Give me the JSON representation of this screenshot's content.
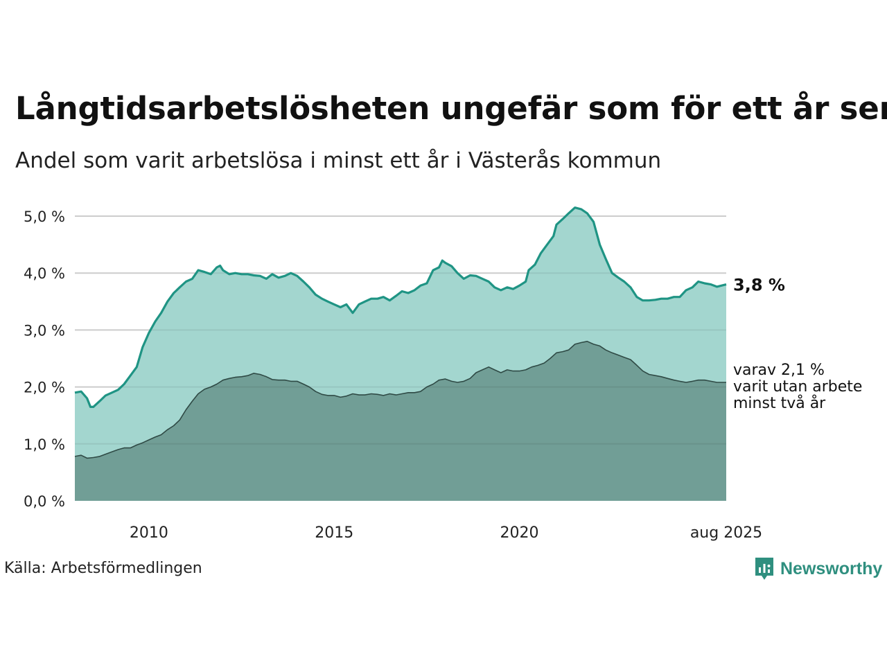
{
  "title": "Långtidsarbetslösheten ungefär som för ett år sen",
  "subtitle": "Andel som varit arbetslösa i minst ett år i Västerås kommun",
  "source": "Källa: Arbetsförmedlingen",
  "brand": "Newsworthy",
  "colors": {
    "area_one_year": "#a3d6cf",
    "line_one_year": "#1f9484",
    "area_two_year": "#6f9c94",
    "line_two_year": "#2f4a45",
    "brand": "#2f8f7f"
  },
  "chart_data": {
    "type": "area",
    "y_tick_labels": [
      "0,0 %",
      "1,0 %",
      "2,0 %",
      "3,0 %",
      "4,0 %",
      "5,0 %"
    ],
    "y_ticks": [
      0,
      1,
      2,
      3,
      4,
      5
    ],
    "ylim": [
      0,
      5.2
    ],
    "x_tick_labels": [
      "2010",
      "2015",
      "2020",
      "aug 2025"
    ],
    "x_ticks": [
      2010.0,
      2015.0,
      2020.0,
      2025.583
    ],
    "xlim": [
      2008.0,
      2025.583
    ],
    "grid": true,
    "series": [
      {
        "key": "one_year",
        "end_label": "3,8 %",
        "points": [
          [
            2008.0,
            1.9
          ],
          [
            2008.17,
            1.92
          ],
          [
            2008.33,
            1.8
          ],
          [
            2008.42,
            1.65
          ],
          [
            2008.5,
            1.65
          ],
          [
            2008.67,
            1.75
          ],
          [
            2008.83,
            1.85
          ],
          [
            2009.0,
            1.9
          ],
          [
            2009.17,
            1.95
          ],
          [
            2009.33,
            2.05
          ],
          [
            2009.5,
            2.2
          ],
          [
            2009.67,
            2.35
          ],
          [
            2009.83,
            2.7
          ],
          [
            2010.0,
            2.95
          ],
          [
            2010.17,
            3.15
          ],
          [
            2010.33,
            3.3
          ],
          [
            2010.5,
            3.5
          ],
          [
            2010.67,
            3.65
          ],
          [
            2010.83,
            3.75
          ],
          [
            2011.0,
            3.85
          ],
          [
            2011.17,
            3.9
          ],
          [
            2011.33,
            4.05
          ],
          [
            2011.5,
            4.02
          ],
          [
            2011.67,
            3.98
          ],
          [
            2011.83,
            4.1
          ],
          [
            2011.92,
            4.13
          ],
          [
            2012.0,
            4.05
          ],
          [
            2012.17,
            3.98
          ],
          [
            2012.33,
            4.0
          ],
          [
            2012.5,
            3.98
          ],
          [
            2012.67,
            3.98
          ],
          [
            2012.83,
            3.96
          ],
          [
            2013.0,
            3.95
          ],
          [
            2013.17,
            3.9
          ],
          [
            2013.33,
            3.98
          ],
          [
            2013.5,
            3.92
          ],
          [
            2013.67,
            3.95
          ],
          [
            2013.83,
            4.0
          ],
          [
            2014.0,
            3.95
          ],
          [
            2014.17,
            3.85
          ],
          [
            2014.33,
            3.75
          ],
          [
            2014.5,
            3.62
          ],
          [
            2014.67,
            3.55
          ],
          [
            2014.83,
            3.5
          ],
          [
            2015.0,
            3.45
          ],
          [
            2015.17,
            3.4
          ],
          [
            2015.33,
            3.45
          ],
          [
            2015.5,
            3.3
          ],
          [
            2015.67,
            3.45
          ],
          [
            2015.83,
            3.5
          ],
          [
            2016.0,
            3.55
          ],
          [
            2016.17,
            3.55
          ],
          [
            2016.33,
            3.58
          ],
          [
            2016.5,
            3.52
          ],
          [
            2016.67,
            3.6
          ],
          [
            2016.83,
            3.68
          ],
          [
            2017.0,
            3.65
          ],
          [
            2017.17,
            3.7
          ],
          [
            2017.33,
            3.78
          ],
          [
            2017.5,
            3.82
          ],
          [
            2017.67,
            4.05
          ],
          [
            2017.83,
            4.1
          ],
          [
            2017.92,
            4.22
          ],
          [
            2018.0,
            4.18
          ],
          [
            2018.17,
            4.12
          ],
          [
            2018.33,
            4.0
          ],
          [
            2018.5,
            3.9
          ],
          [
            2018.67,
            3.96
          ],
          [
            2018.83,
            3.95
          ],
          [
            2019.0,
            3.9
          ],
          [
            2019.17,
            3.85
          ],
          [
            2019.33,
            3.75
          ],
          [
            2019.5,
            3.7
          ],
          [
            2019.67,
            3.75
          ],
          [
            2019.83,
            3.72
          ],
          [
            2020.0,
            3.78
          ],
          [
            2020.17,
            3.85
          ],
          [
            2020.25,
            4.05
          ],
          [
            2020.42,
            4.15
          ],
          [
            2020.58,
            4.35
          ],
          [
            2020.75,
            4.5
          ],
          [
            2020.92,
            4.65
          ],
          [
            2021.0,
            4.85
          ],
          [
            2021.17,
            4.95
          ],
          [
            2021.33,
            5.05
          ],
          [
            2021.5,
            5.15
          ],
          [
            2021.67,
            5.12
          ],
          [
            2021.83,
            5.05
          ],
          [
            2022.0,
            4.9
          ],
          [
            2022.17,
            4.5
          ],
          [
            2022.33,
            4.25
          ],
          [
            2022.5,
            4.0
          ],
          [
            2022.67,
            3.92
          ],
          [
            2022.83,
            3.85
          ],
          [
            2023.0,
            3.75
          ],
          [
            2023.17,
            3.58
          ],
          [
            2023.33,
            3.52
          ],
          [
            2023.5,
            3.52
          ],
          [
            2023.67,
            3.53
          ],
          [
            2023.83,
            3.55
          ],
          [
            2024.0,
            3.55
          ],
          [
            2024.17,
            3.58
          ],
          [
            2024.33,
            3.58
          ],
          [
            2024.5,
            3.7
          ],
          [
            2024.67,
            3.75
          ],
          [
            2024.83,
            3.85
          ],
          [
            2025.0,
            3.82
          ],
          [
            2025.17,
            3.8
          ],
          [
            2025.33,
            3.76
          ],
          [
            2025.583,
            3.8
          ]
        ]
      },
      {
        "key": "two_year",
        "end_label_lines": [
          "varav 2,1 %",
          "varit utan arbete",
          "minst två år"
        ],
        "points": [
          [
            2008.0,
            0.78
          ],
          [
            2008.17,
            0.8
          ],
          [
            2008.33,
            0.75
          ],
          [
            2008.5,
            0.76
          ],
          [
            2008.67,
            0.78
          ],
          [
            2008.83,
            0.82
          ],
          [
            2009.0,
            0.86
          ],
          [
            2009.17,
            0.9
          ],
          [
            2009.33,
            0.93
          ],
          [
            2009.5,
            0.93
          ],
          [
            2009.67,
            0.98
          ],
          [
            2009.83,
            1.02
          ],
          [
            2010.0,
            1.07
          ],
          [
            2010.17,
            1.12
          ],
          [
            2010.33,
            1.16
          ],
          [
            2010.5,
            1.25
          ],
          [
            2010.67,
            1.32
          ],
          [
            2010.83,
            1.42
          ],
          [
            2011.0,
            1.6
          ],
          [
            2011.17,
            1.75
          ],
          [
            2011.33,
            1.88
          ],
          [
            2011.5,
            1.96
          ],
          [
            2011.67,
            2.0
          ],
          [
            2011.83,
            2.05
          ],
          [
            2012.0,
            2.12
          ],
          [
            2012.17,
            2.15
          ],
          [
            2012.33,
            2.17
          ],
          [
            2012.5,
            2.18
          ],
          [
            2012.67,
            2.2
          ],
          [
            2012.83,
            2.24
          ],
          [
            2013.0,
            2.22
          ],
          [
            2013.17,
            2.18
          ],
          [
            2013.33,
            2.13
          ],
          [
            2013.5,
            2.12
          ],
          [
            2013.67,
            2.12
          ],
          [
            2013.83,
            2.1
          ],
          [
            2014.0,
            2.1
          ],
          [
            2014.17,
            2.05
          ],
          [
            2014.33,
            2.0
          ],
          [
            2014.5,
            1.92
          ],
          [
            2014.67,
            1.87
          ],
          [
            2014.83,
            1.85
          ],
          [
            2015.0,
            1.85
          ],
          [
            2015.17,
            1.82
          ],
          [
            2015.33,
            1.84
          ],
          [
            2015.5,
            1.88
          ],
          [
            2015.67,
            1.86
          ],
          [
            2015.83,
            1.86
          ],
          [
            2016.0,
            1.88
          ],
          [
            2016.17,
            1.87
          ],
          [
            2016.33,
            1.85
          ],
          [
            2016.5,
            1.88
          ],
          [
            2016.67,
            1.86
          ],
          [
            2016.83,
            1.88
          ],
          [
            2017.0,
            1.9
          ],
          [
            2017.17,
            1.9
          ],
          [
            2017.33,
            1.92
          ],
          [
            2017.5,
            2.0
          ],
          [
            2017.67,
            2.05
          ],
          [
            2017.83,
            2.12
          ],
          [
            2018.0,
            2.14
          ],
          [
            2018.17,
            2.1
          ],
          [
            2018.33,
            2.08
          ],
          [
            2018.5,
            2.1
          ],
          [
            2018.67,
            2.15
          ],
          [
            2018.83,
            2.25
          ],
          [
            2019.0,
            2.3
          ],
          [
            2019.17,
            2.35
          ],
          [
            2019.33,
            2.3
          ],
          [
            2019.5,
            2.25
          ],
          [
            2019.67,
            2.3
          ],
          [
            2019.83,
            2.28
          ],
          [
            2020.0,
            2.28
          ],
          [
            2020.17,
            2.3
          ],
          [
            2020.33,
            2.35
          ],
          [
            2020.5,
            2.38
          ],
          [
            2020.67,
            2.42
          ],
          [
            2020.83,
            2.5
          ],
          [
            2021.0,
            2.6
          ],
          [
            2021.17,
            2.62
          ],
          [
            2021.33,
            2.65
          ],
          [
            2021.5,
            2.75
          ],
          [
            2021.67,
            2.78
          ],
          [
            2021.83,
            2.8
          ],
          [
            2022.0,
            2.75
          ],
          [
            2022.17,
            2.72
          ],
          [
            2022.33,
            2.65
          ],
          [
            2022.5,
            2.6
          ],
          [
            2022.67,
            2.56
          ],
          [
            2022.83,
            2.52
          ],
          [
            2023.0,
            2.48
          ],
          [
            2023.17,
            2.38
          ],
          [
            2023.33,
            2.28
          ],
          [
            2023.5,
            2.22
          ],
          [
            2023.67,
            2.2
          ],
          [
            2023.83,
            2.18
          ],
          [
            2024.0,
            2.15
          ],
          [
            2024.17,
            2.12
          ],
          [
            2024.33,
            2.1
          ],
          [
            2024.5,
            2.08
          ],
          [
            2024.67,
            2.1
          ],
          [
            2024.83,
            2.12
          ],
          [
            2025.0,
            2.12
          ],
          [
            2025.17,
            2.1
          ],
          [
            2025.33,
            2.08
          ],
          [
            2025.583,
            2.08
          ]
        ]
      }
    ]
  }
}
